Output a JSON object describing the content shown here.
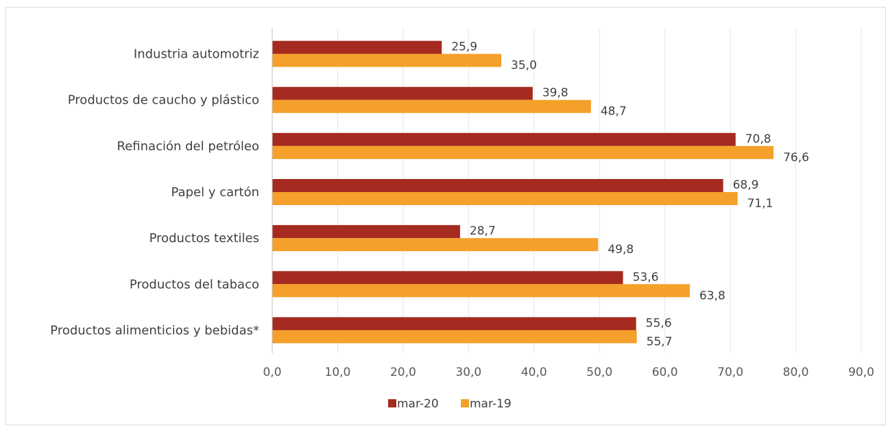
{
  "chart_data": {
    "type": "bar",
    "orientation": "horizontal",
    "categories": [
      "Industria automotriz",
      "Productos de caucho y plástico",
      "Refinación del petróleo",
      "Papel y cartón",
      "Productos textiles",
      "Productos del tabaco",
      "Productos alimenticios y bebidas*"
    ],
    "series": [
      {
        "name": "mar-20",
        "color": "#a52a1f",
        "values": [
          25.9,
          39.8,
          70.8,
          68.9,
          28.7,
          53.6,
          55.6
        ],
        "labels": [
          "25,9",
          "39,8",
          "70,8",
          "68,9",
          "28,7",
          "53,6",
          "55,6"
        ]
      },
      {
        "name": "mar-19",
        "color": "#f5a02a",
        "values": [
          35.0,
          48.7,
          76.6,
          71.1,
          49.8,
          63.8,
          55.7
        ],
        "labels": [
          "35,0",
          "48,7",
          "76,6",
          "71,1",
          "49,8",
          "63,8",
          "55,7"
        ]
      }
    ],
    "xlim": [
      0,
      90
    ],
    "x_ticks": [
      0,
      10,
      20,
      30,
      40,
      50,
      60,
      70,
      80,
      90
    ],
    "x_tick_labels": [
      "0,0",
      "10,0",
      "20,0",
      "30,0",
      "40,0",
      "50,0",
      "60,0",
      "70,0",
      "80,0",
      "90,0"
    ],
    "title": "",
    "xlabel": "",
    "ylabel": "",
    "grid": true,
    "legend_position": "bottom"
  }
}
